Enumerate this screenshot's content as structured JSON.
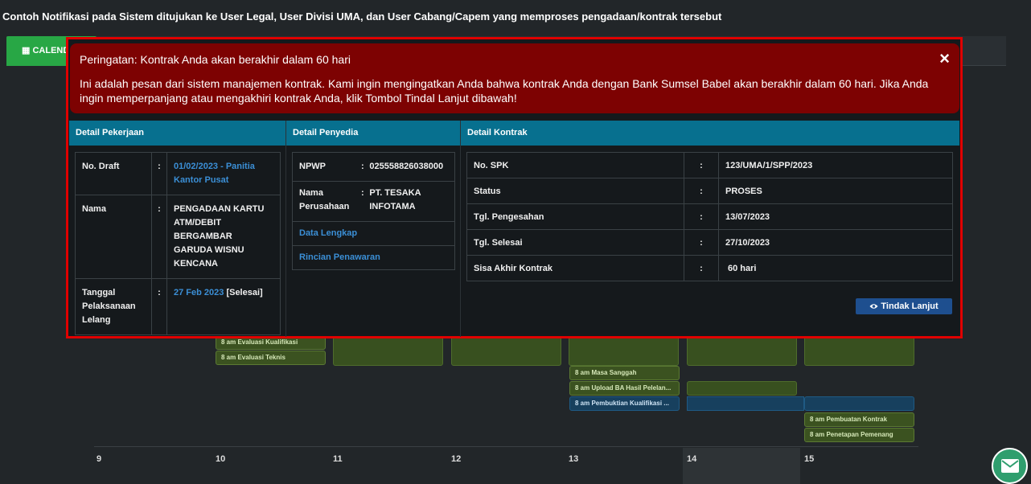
{
  "page": {
    "heading": "Contoh Notifikasi pada Sistem ditujukan ke User Legal, User Divisi UMA, dan User Cabang/Capem yang memproses pengadaan/kontrak tersebut"
  },
  "tabs": {
    "calendar_label": "CALENDAR"
  },
  "calendar": {
    "events": {
      "evaluasi_kualifikasi": "8 am Evaluasi Kualifikasi",
      "evaluasi_teknis": "8 am Evaluasi Teknis",
      "masa_sanggah": "8 am Masa Sanggah",
      "upload_ba": "8 am Upload BA Hasil Pelelan...",
      "pembuktian": "8 am Pembuktian Kualifikasi ...",
      "pembuatan_kontrak": "8 am Pembuatan Kontrak",
      "penetapan_pemenang": "8 am Penetapan Pemenang"
    },
    "days": [
      "9",
      "10",
      "11",
      "12",
      "13",
      "14",
      "15"
    ]
  },
  "modal": {
    "alert": {
      "title": "Peringatan: Kontrak Anda akan berakhir dalam 60 hari",
      "body": "Ini adalah pesan dari sistem manajemen kontrak. Kami ingin mengingatkan Anda bahwa kontrak Anda dengan Bank Sumsel Babel akan berakhir dalam 60 hari. Jika Anda ingin memperpanjang atau mengakhiri kontrak Anda, klik Tombol Tindal Lanjut dibawah!",
      "close": "×"
    },
    "pekerjaan": {
      "header": "Detail Pekerjaan",
      "no_draft_label": "No. Draft",
      "no_draft_value": "01/02/2023 - Panitia Kantor Pusat",
      "nama_label": "Nama",
      "nama_value": "PENGADAAN KARTU ATM/DEBIT BERGAMBAR GARUDA WISNU KENCANA",
      "tanggal_label": "Tanggal Pelaksanaan Lelang",
      "tanggal_value": "27 Feb 2023",
      "tanggal_status": "[Selesai]",
      "sep": ":"
    },
    "penyedia": {
      "header": "Detail Penyedia",
      "npwp_label": "NPWP",
      "npwp_value": "025558826038000",
      "nama_label": "Nama Perusahaan",
      "nama_value": "PT. TESAKA INFOTAMA",
      "data_lengkap": "Data Lengkap",
      "rincian": "Rincian Penawaran",
      "sep": ":"
    },
    "kontrak": {
      "header": "Detail Kontrak",
      "rows": [
        {
          "label": "No. SPK",
          "value": "123/UMA/1/SPP/2023"
        },
        {
          "label": "Status",
          "value": "PROSES"
        },
        {
          "label": "Tgl. Pengesahan",
          "value": "13/07/2023"
        },
        {
          "label": "Tgl. Selesai",
          "value": "27/10/2023"
        },
        {
          "label": "Sisa Akhir Kontrak",
          "value": "60 hari"
        }
      ],
      "sep": ":",
      "button": "Tindak Lanjut"
    }
  },
  "icons": {
    "calendar": "calendar-icon",
    "eye": "eye-icon",
    "mail": "mail-icon"
  }
}
